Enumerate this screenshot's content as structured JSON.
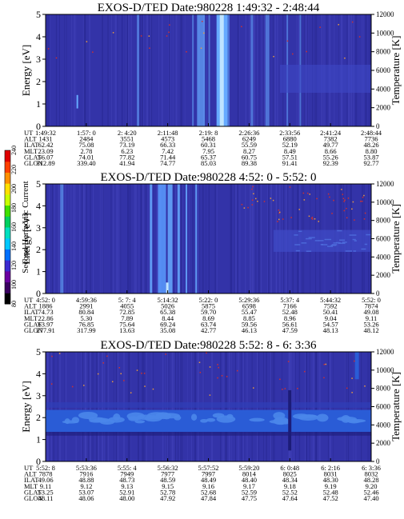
{
  "colors": {
    "background": "#3333a8",
    "streak_light": "#66aaff",
    "streak_bright": "#bfe4ff",
    "streak_dark": "#1c1c78",
    "band_mid": "#2a5cd6",
    "band_light": "#4a86ea",
    "dot_red": "#d03030",
    "dot_orange": "#e89a40"
  },
  "colorbar": {
    "label": "Second Harmonic Current",
    "ticks": [
      "80",
      "100",
      "120",
      "140",
      "160",
      "180",
      "200",
      "220",
      "240"
    ],
    "colors": [
      "#000000",
      "#3a0060",
      "#6a00a0",
      "#3b2ad0",
      "#0070ff",
      "#00c8ff",
      "#00e0c0",
      "#00d060",
      "#40e000",
      "#c8ff00",
      "#ffe000",
      "#ff9000",
      "#ff4000",
      "#e00000"
    ]
  },
  "chart_data": [
    {
      "type": "heatmap",
      "title": "EXOS-D/TED   Date:980228  1:49:32 - 2:48:44",
      "ylabel": "Energy [eV]",
      "y2label": "Temperature [K]",
      "ylim": [
        0,
        5
      ],
      "y2lim": [
        0,
        12000
      ],
      "yticks": [
        "0",
        "1",
        "2",
        "3",
        "4",
        "5"
      ],
      "y2ticks": [
        "0",
        "2000",
        "4000",
        "6000",
        "8000",
        "10000",
        "12000"
      ],
      "xticks": [
        "1:49:32",
        "1:57: 0",
        "2: 4:20",
        "2:11:48",
        "2:19: 8",
        "2:26:36",
        "2:33:56",
        "2:41:24",
        "2:48:44"
      ],
      "rows": [
        {
          "name": "UT",
          "values": [
            "1:49:32",
            "1:57: 0",
            "2: 4:20",
            "2:11:48",
            "2:19: 8",
            "2:26:36",
            "2:33:56",
            "2:41:24",
            "2:48:44"
          ]
        },
        {
          "name": "ALT",
          "values": [
            "1431",
            "2484",
            "3551",
            "4573",
            "5468",
            "6249",
            "6880",
            "7382",
            "7736"
          ]
        },
        {
          "name": "ILAT",
          "values": [
            "62.42",
            "75.08",
            "73.19",
            "66.33",
            "60.31",
            "55.59",
            "52.19",
            "49.77",
            "48.26"
          ]
        },
        {
          "name": "MLT",
          "values": [
            "23.09",
            "2.78",
            "6.23",
            "7.42",
            "7.95",
            "8.27",
            "8.49",
            "8.66",
            "8.80"
          ]
        },
        {
          "name": "GLAT",
          "values": [
            "56.07",
            "74.01",
            "77.82",
            "71.44",
            "65.37",
            "60.75",
            "57.51",
            "55.26",
            "53.87"
          ]
        },
        {
          "name": "GLON",
          "values": [
            "312.89",
            "339.40",
            "41.94",
            "74.77",
            "85.03",
            "89.38",
            "91.41",
            "92.39",
            "92.77"
          ]
        }
      ]
    },
    {
      "type": "heatmap",
      "title": "EXOS-D/TED   Date:980228  4:52: 0 - 5:52: 0",
      "ylabel": "Energy [eV]",
      "y2label": "Temperature [K]",
      "ylim": [
        0,
        5
      ],
      "y2lim": [
        0,
        12000
      ],
      "yticks": [
        "0",
        "1",
        "2",
        "3",
        "4",
        "5"
      ],
      "y2ticks": [
        "0",
        "2000",
        "4000",
        "6000",
        "8000",
        "10000",
        "12000"
      ],
      "xticks": [
        "4:52: 0",
        "4:59:36",
        "5: 7: 4",
        "5:14:32",
        "5:22: 0",
        "5:29:36",
        "5:37: 4",
        "5:44:32",
        "5:52: 0"
      ],
      "rows": [
        {
          "name": "UT",
          "values": [
            "4:52: 0",
            "4:59:36",
            "5: 7: 4",
            "5:14:32",
            "5:22: 0",
            "5:29:36",
            "5:37: 4",
            "5:44:32",
            "5:52: 0"
          ]
        },
        {
          "name": "ALT",
          "values": [
            "1886",
            "2991",
            "4055",
            "5026",
            "5875",
            "6598",
            "7166",
            "7592",
            "7874"
          ]
        },
        {
          "name": "ILAT",
          "values": [
            "74.73",
            "80.84",
            "72.85",
            "65.38",
            "59.70",
            "55.47",
            "52.48",
            "50.41",
            "49.08"
          ]
        },
        {
          "name": "MLT",
          "values": [
            "22.86",
            "5.30",
            "7.89",
            "8.44",
            "8.69",
            "8.85",
            "8.96",
            "9.04",
            "9.11"
          ]
        },
        {
          "name": "GLAT",
          "values": [
            "63.97",
            "76.85",
            "75.64",
            "69.24",
            "63.74",
            "59.56",
            "56.61",
            "54.57",
            "53.26"
          ]
        },
        {
          "name": "GLON",
          "values": [
            "277.91",
            "317.99",
            "13.63",
            "35.08",
            "42.77",
            "46.13",
            "47.59",
            "48.13",
            "48.12"
          ]
        }
      ]
    },
    {
      "type": "heatmap",
      "title": "EXOS-D/TED   Date:980228  5:52: 8 - 6: 3:36",
      "ylabel": "Energy [eV]",
      "y2label": "Temperature [K]",
      "ylim": [
        0,
        5
      ],
      "y2lim": [
        0,
        12000
      ],
      "yticks": [
        "0",
        "1",
        "2",
        "3",
        "4",
        "5"
      ],
      "y2ticks": [
        "0",
        "2000",
        "4000",
        "6000",
        "8000",
        "10000",
        "12000"
      ],
      "xticks": [
        "5:52: 8",
        "5:53:36",
        "5:55: 4",
        "5:56:32",
        "5:57:52",
        "5:59:20",
        "6: 0:48",
        "6: 2:16",
        "6: 3:36"
      ],
      "rows": [
        {
          "name": "UT",
          "values": [
            "5:52: 8",
            "5:53:36",
            "5:55: 4",
            "5:56:32",
            "5:57:52",
            "5:59:20",
            "6: 0:48",
            "6: 2:16",
            "6: 3:36"
          ]
        },
        {
          "name": "ALT",
          "values": [
            "7878",
            "7916",
            "7949",
            "7977",
            "7997",
            "8014",
            "8025",
            "8031",
            "8032"
          ]
        },
        {
          "name": "ILAT",
          "values": [
            "49.06",
            "48.88",
            "48.73",
            "48.59",
            "48.49",
            "48.40",
            "48.34",
            "48.30",
            "48.28"
          ]
        },
        {
          "name": "MLT",
          "values": [
            "9.11",
            "9.12",
            "9.13",
            "9.15",
            "9.16",
            "9.17",
            "9.18",
            "9.19",
            "9.20"
          ]
        },
        {
          "name": "GLAT",
          "values": [
            "53.25",
            "53.07",
            "52.91",
            "52.78",
            "52.68",
            "52.59",
            "52.52",
            "52.48",
            "52.46"
          ]
        },
        {
          "name": "GLON",
          "values": [
            "48.11",
            "48.06",
            "48.00",
            "47.92",
            "47.84",
            "47.75",
            "47.64",
            "47.52",
            "47.40"
          ]
        }
      ]
    }
  ]
}
